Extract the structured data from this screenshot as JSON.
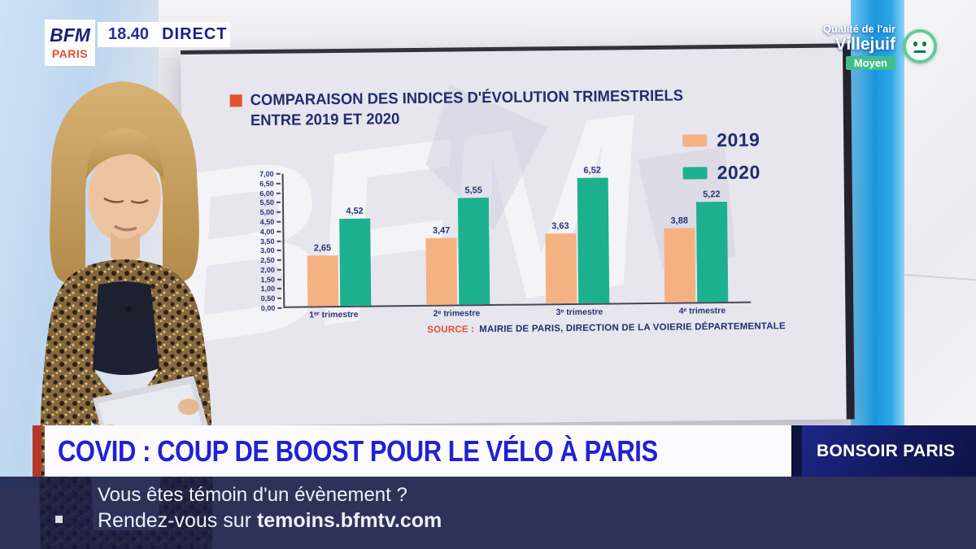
{
  "channel": {
    "logo_top": "BFM",
    "logo_bottom": "PARIS",
    "time": "18.40",
    "live": "DIRECT"
  },
  "air_quality": {
    "label": "Qualité de l'air",
    "city": "Villejuif",
    "level": "Moyen",
    "level_color": "#3fbf8d",
    "face": "neutral-face"
  },
  "screen": {
    "watermark": "BFM",
    "chart_title_line1": "COMPARAISON DES INDICES D'ÉVOLUTION TRIMESTRIELS",
    "chart_title_line2": "ENTRE 2019 ET 2020",
    "source_label": "SOURCE :",
    "source_text": "MAIRIE DE PARIS, DIRECTION DE LA VOIERIE DÉPARTEMENTALE"
  },
  "chart_data": {
    "type": "bar",
    "title": "COMPARAISON DES INDICES D'ÉVOLUTION TRIMESTRIELS ENTRE 2019 ET 2020",
    "categories": [
      "1ᵉʳ trimestre",
      "2ᵉ trimestre",
      "3ᵉ trimestre",
      "4ᵉ trimestre"
    ],
    "series": [
      {
        "name": "2019",
        "color": "#f6b183",
        "values": [
          2.65,
          3.47,
          3.63,
          3.88
        ],
        "labels": [
          "2,65",
          "3,47",
          "3,63",
          "3,88"
        ]
      },
      {
        "name": "2020",
        "color": "#1cb18e",
        "values": [
          4.52,
          5.55,
          6.52,
          5.22
        ],
        "labels": [
          "4,52",
          "5,55",
          "6,52",
          "5,22"
        ]
      }
    ],
    "ylim": [
      0,
      7
    ],
    "y_ticks": [
      "7,00",
      "6,50",
      "6,00",
      "5,50",
      "5,00",
      "4,50",
      "4,00",
      "3,50",
      "3,00",
      "2,50",
      "2,00",
      "1,50",
      "1,00",
      "0,50",
      "0,00"
    ],
    "grid": false,
    "legend_position": "top-right",
    "xlabel": "",
    "ylabel": "",
    "source": "MAIRIE DE PARIS, DIRECTION DE LA VOIERIE DÉPARTEMENTALE"
  },
  "banner": {
    "headline": "COVID : COUP DE BOOST POUR LE VÉLO À PARIS",
    "headline_color": "#2220d5",
    "program": "BONSOIR PARIS"
  },
  "ticker": {
    "line1": "Vous êtes témoin d'un évènement ?",
    "line2_prefix": "Rendez-vous sur ",
    "line2_bold": "temoins.bfmtv.com"
  }
}
